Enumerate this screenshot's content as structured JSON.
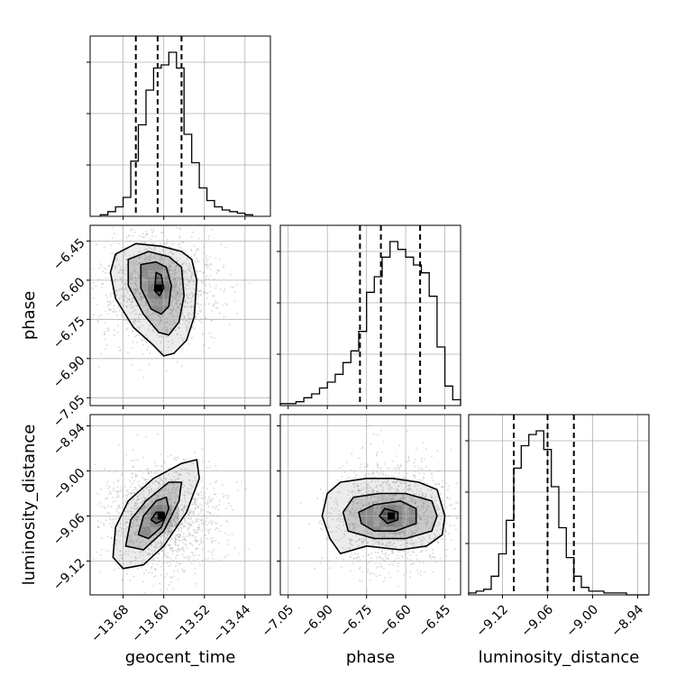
{
  "chart_data": {
    "type": "corner",
    "parameters": [
      "geocent_time",
      "phase",
      "luminosity_distance"
    ],
    "xticks": {
      "geocent_time": [
        "−13.68",
        "−13.60",
        "−13.52",
        "−13.44"
      ],
      "phase": [
        "−7.05",
        "−6.90",
        "−6.75",
        "−6.60",
        "−6.45"
      ],
      "luminosity_distance": [
        "−9.12",
        "−9.06",
        "−9.00",
        "−8.94"
      ]
    },
    "yticks": {
      "phase": [
        "−6.45",
        "−6.60",
        "−6.75",
        "−6.90",
        "−7.05"
      ],
      "luminosity_distance": [
        "−8.94",
        "−9.00",
        "−9.06",
        "−9.12"
      ]
    },
    "ranges": {
      "geocent_time": [
        -13.745,
        -13.39
      ],
      "phase": [
        -7.08,
        -6.39
      ],
      "luminosity_distance": [
        -9.165,
        -8.925
      ]
    },
    "histograms": [
      {
        "parameter": "geocent_time",
        "bin_start": -13.725,
        "bin_width": 0.015,
        "counts": [
          1,
          3,
          6,
          12,
          35,
          58,
          80,
          94,
          96,
          104,
          94,
          52,
          34,
          18,
          10,
          6,
          4,
          3,
          2,
          1
        ],
        "quantiles": [
          -13.655,
          -13.612,
          -13.565
        ]
      },
      {
        "parameter": "phase",
        "bin_start": -7.08,
        "bin_width": 0.03,
        "counts": [
          1,
          1,
          2,
          4,
          6,
          9,
          12,
          16,
          22,
          28,
          38,
          58,
          66,
          76,
          84,
          80,
          76,
          72,
          68,
          56,
          30,
          10,
          3
        ],
        "quantiles": [
          -6.775,
          -6.695,
          -6.545
        ]
      },
      {
        "parameter": "luminosity_distance",
        "bin_start": -9.165,
        "bin_width": 0.01,
        "counts": [
          1,
          2,
          3,
          10,
          22,
          40,
          68,
          80,
          86,
          88,
          78,
          58,
          36,
          20,
          10,
          4,
          2,
          2,
          1,
          1,
          1,
          0,
          0,
          0
        ],
        "quantiles": [
          -9.105,
          -9.06,
          -9.025
        ]
      }
    ],
    "scatter_2d": [
      {
        "x": "geocent_time",
        "y": "phase",
        "center": [
          -13.61,
          -6.63
        ],
        "contours": [
          [
            [
              -13.695,
              -6.5
            ],
            [
              -13.655,
              -6.46
            ],
            [
              -13.605,
              -6.47
            ],
            [
              -13.565,
              -6.49
            ],
            [
              -13.545,
              -6.52
            ],
            [
              -13.535,
              -6.6
            ],
            [
              -13.54,
              -6.74
            ],
            [
              -13.555,
              -6.83
            ],
            [
              -13.58,
              -6.88
            ],
            [
              -13.6,
              -6.89
            ],
            [
              -13.62,
              -6.85
            ],
            [
              -13.66,
              -6.78
            ],
            [
              -13.695,
              -6.67
            ],
            [
              -13.705,
              -6.57
            ]
          ],
          [
            [
              -13.67,
              -6.52
            ],
            [
              -13.63,
              -6.49
            ],
            [
              -13.59,
              -6.51
            ],
            [
              -13.565,
              -6.55
            ],
            [
              -13.56,
              -6.66
            ],
            [
              -13.57,
              -6.76
            ],
            [
              -13.59,
              -6.81
            ],
            [
              -13.61,
              -6.8
            ],
            [
              -13.64,
              -6.73
            ],
            [
              -13.67,
              -6.62
            ]
          ],
          [
            [
              -13.645,
              -6.54
            ],
            [
              -13.615,
              -6.53
            ],
            [
              -13.595,
              -6.55
            ],
            [
              -13.585,
              -6.62
            ],
            [
              -13.59,
              -6.7
            ],
            [
              -13.605,
              -6.73
            ],
            [
              -13.625,
              -6.71
            ],
            [
              -13.645,
              -6.63
            ]
          ],
          [
            [
              -13.615,
              -6.57
            ],
            [
              -13.605,
              -6.58
            ],
            [
              -13.6,
              -6.63
            ],
            [
              -13.608,
              -6.66
            ],
            [
              -13.618,
              -6.64
            ]
          ]
        ]
      },
      {
        "x": "geocent_time",
        "y": "luminosity_distance",
        "center": [
          -13.605,
          -9.06
        ],
        "contours": [
          [
            [
              -13.7,
              -9.115
            ],
            [
              -13.695,
              -9.075
            ],
            [
              -13.67,
              -9.04
            ],
            [
              -13.62,
              -9.01
            ],
            [
              -13.565,
              -8.99
            ],
            [
              -13.535,
              -8.985
            ],
            [
              -13.53,
              -9.01
            ],
            [
              -13.555,
              -9.055
            ],
            [
              -13.6,
              -9.1
            ],
            [
              -13.64,
              -9.125
            ],
            [
              -13.68,
              -9.13
            ]
          ],
          [
            [
              -13.675,
              -9.1
            ],
            [
              -13.665,
              -9.065
            ],
            [
              -13.635,
              -9.04
            ],
            [
              -13.59,
              -9.015
            ],
            [
              -13.565,
              -9.015
            ],
            [
              -13.57,
              -9.04
            ],
            [
              -13.6,
              -9.08
            ],
            [
              -13.64,
              -9.105
            ]
          ],
          [
            [
              -13.65,
              -9.085
            ],
            [
              -13.64,
              -9.06
            ],
            [
              -13.615,
              -9.04
            ],
            [
              -13.595,
              -9.035
            ],
            [
              -13.59,
              -9.05
            ],
            [
              -13.605,
              -9.075
            ],
            [
              -13.63,
              -9.09
            ]
          ],
          [
            [
              -13.625,
              -9.065
            ],
            [
              -13.615,
              -9.055
            ],
            [
              -13.6,
              -9.055
            ],
            [
              -13.6,
              -9.065
            ],
            [
              -13.615,
              -9.07
            ]
          ]
        ]
      },
      {
        "x": "phase",
        "y": "luminosity_distance",
        "center": [
          -6.655,
          -9.06
        ],
        "contours": [
          [
            [
              -6.89,
              -9.09
            ],
            [
              -6.92,
              -9.06
            ],
            [
              -6.9,
              -9.03
            ],
            [
              -6.85,
              -9.015
            ],
            [
              -6.75,
              -9.01
            ],
            [
              -6.65,
              -9.01
            ],
            [
              -6.55,
              -9.015
            ],
            [
              -6.48,
              -9.025
            ],
            [
              -6.45,
              -9.06
            ],
            [
              -6.46,
              -9.085
            ],
            [
              -6.52,
              -9.1
            ],
            [
              -6.62,
              -9.105
            ],
            [
              -6.75,
              -9.1
            ],
            [
              -6.85,
              -9.11
            ]
          ],
          [
            [
              -6.82,
              -9.08
            ],
            [
              -6.84,
              -9.055
            ],
            [
              -6.8,
              -9.035
            ],
            [
              -6.7,
              -9.03
            ],
            [
              -6.6,
              -9.03
            ],
            [
              -6.5,
              -9.04
            ],
            [
              -6.48,
              -9.06
            ],
            [
              -6.5,
              -9.08
            ],
            [
              -6.6,
              -9.09
            ],
            [
              -6.72,
              -9.09
            ]
          ],
          [
            [
              -6.77,
              -9.07
            ],
            [
              -6.78,
              -9.055
            ],
            [
              -6.72,
              -9.045
            ],
            [
              -6.62,
              -9.04
            ],
            [
              -6.56,
              -9.05
            ],
            [
              -6.56,
              -9.07
            ],
            [
              -6.64,
              -9.08
            ],
            [
              -6.72,
              -9.08
            ]
          ],
          [
            [
              -6.7,
              -9.06
            ],
            [
              -6.68,
              -9.05
            ],
            [
              -6.63,
              -9.055
            ],
            [
              -6.63,
              -9.065
            ],
            [
              -6.67,
              -9.07
            ]
          ]
        ]
      }
    ],
    "grid": true
  }
}
